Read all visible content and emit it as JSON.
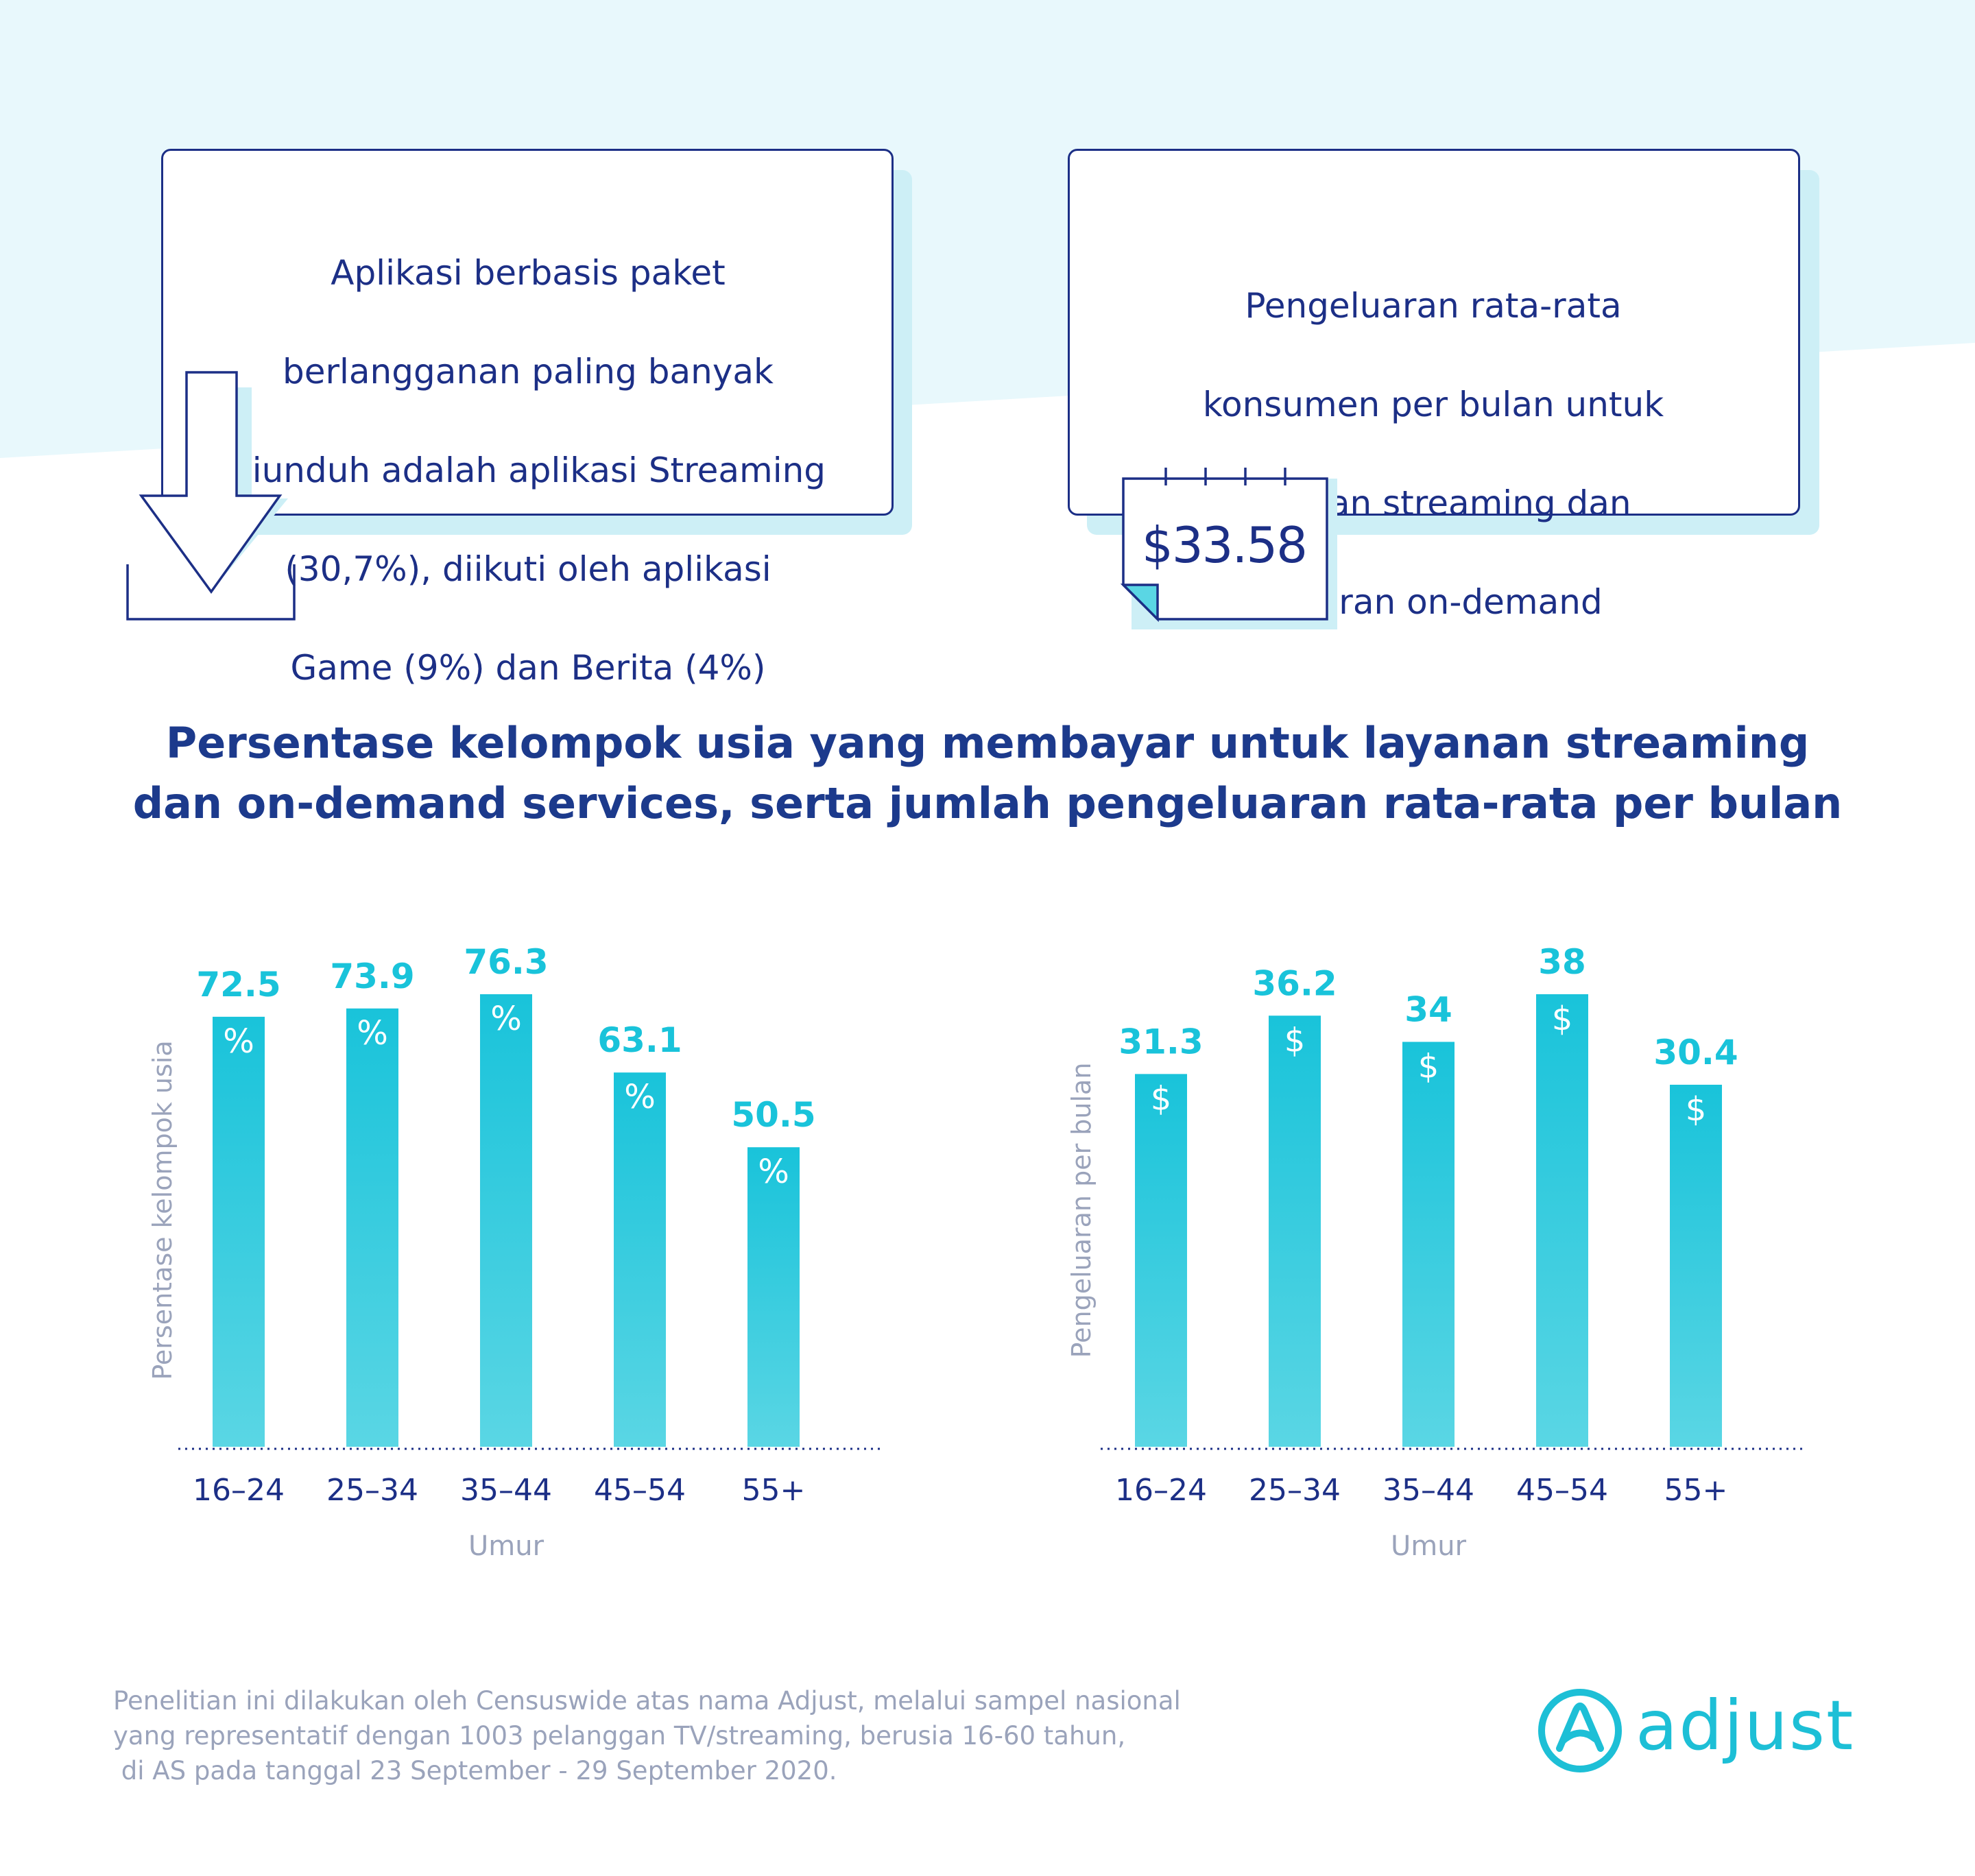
{
  "colors": {
    "navy": "#1c2f86",
    "teal": "#19c3da",
    "teal_light": "#5ad6e4",
    "muted": "#9aa3bb",
    "bg_tint": "#e8f8fc"
  },
  "cards": {
    "left": {
      "text_lines": [
        "Aplikasi berbasis paket",
        "berlangganan paling banyak",
        "diunduh adalah aplikasi Streaming",
        "(30,7%), diikuti oleh aplikasi",
        "Game (9%) dan Berita (4%)"
      ],
      "icon": "download-arrow-icon"
    },
    "right": {
      "text_lines": [
        "Pengeluaran rata-rata",
        "konsumen per bulan untuk",
        "layanan streaming dan",
        "hiburan on-demand"
      ],
      "amount": "$33.58",
      "icon": "calendar-note-icon"
    }
  },
  "title_lines": [
    "Persentase kelompok usia yang membayar untuk layanan streaming",
    "dan on-demand services, serta jumlah pengeluaran rata-rata per bulan"
  ],
  "chart_data": [
    {
      "type": "bar",
      "categories": [
        "16–24",
        "25–34",
        "35–44",
        "45–54",
        "55+"
      ],
      "values": [
        72.5,
        73.9,
        76.3,
        63.1,
        50.5
      ],
      "value_labels": [
        "72.5",
        "73.9",
        "76.3",
        "63.1",
        "50.5"
      ],
      "bar_symbol": "%",
      "xlabel": "Umur",
      "ylabel": "Persentase kelompok usia",
      "ylim": [
        0,
        76.3
      ],
      "grid": false
    },
    {
      "type": "bar",
      "categories": [
        "16–24",
        "25–34",
        "35–44",
        "45–54",
        "55+"
      ],
      "values": [
        31.3,
        36.2,
        34,
        38,
        30.4
      ],
      "value_labels": [
        "31.3",
        "36.2",
        "34",
        "38",
        "30.4"
      ],
      "bar_symbol": "$",
      "xlabel": "Umur",
      "ylabel": "Pengeluaran per bulan",
      "ylim": [
        0,
        38
      ],
      "grid": false
    }
  ],
  "footnote_lines": [
    "Penelitian ini dilakukan oleh Censuswide atas nama Adjust, melalui sampel nasional",
    "yang representatif dengan 1003 pelanggan TV/streaming, berusia 16-60 tahun,",
    " di AS pada tanggal 23 September - 29 September 2020."
  ],
  "brand": {
    "name": "adjust",
    "icon": "adjust-logo-icon"
  }
}
